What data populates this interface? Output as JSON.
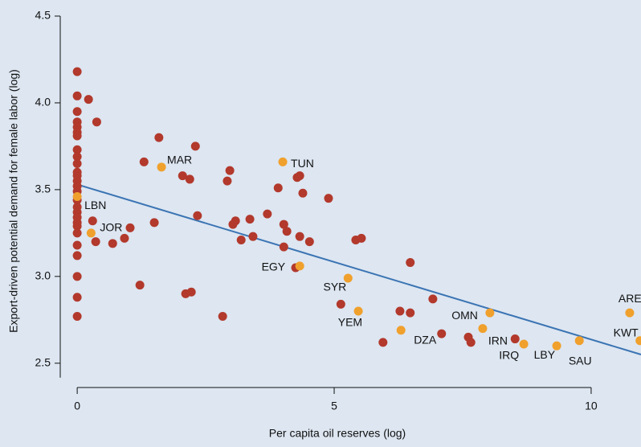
{
  "chart_data": {
    "type": "scatter",
    "x_label": "Per capita oil reserves (log)",
    "y_label": "Export-driven potential demand for female labor (log)",
    "xlim": [
      -0.33,
      10.97
    ],
    "xticks": [
      0,
      5,
      10
    ],
    "ylim": [
      2.36,
      4.5
    ],
    "yticks": [
      {
        "value": 2.5,
        "label": "2.5"
      },
      {
        "value": 3.0,
        "label": "3.0"
      },
      {
        "value": 3.5,
        "label": "3.5"
      },
      {
        "value": 4.0,
        "label": "4.0"
      },
      {
        "value": 4.5,
        "label": "4.5"
      }
    ],
    "trend_line": {
      "x": [
        0,
        10.97
      ],
      "y": [
        3.53,
        2.55
      ],
      "color": "#3b74b3"
    },
    "series": [
      {
        "color": "#b2392c",
        "x": [
          0,
          0,
          0,
          0,
          0,
          0,
          0,
          0,
          0,
          0,
          0,
          0,
          0,
          0,
          0,
          0,
          0,
          0,
          0,
          0,
          0,
          0,
          0,
          0,
          0,
          0,
          0,
          0.22,
          0.38,
          0.3,
          0.36,
          0.69,
          0.92,
          1.03,
          1.22,
          1.3,
          1.5,
          1.59,
          2.05,
          2.19,
          2.3,
          2.34,
          2.11,
          2.22,
          2.83,
          2.92,
          2.97,
          3.03,
          3.08,
          3.19,
          3.36,
          3.42,
          3.7,
          3.91,
          4.02,
          4.08,
          4.02,
          4.25,
          4.28,
          4.33,
          4.33,
          4.39,
          4.52,
          4.89,
          5.42,
          5.53,
          5.13,
          5.95,
          6.28,
          6.48,
          6.48,
          6.92,
          7.09,
          7.61,
          7.66,
          8.52
        ],
        "y": [
          4.18,
          4.04,
          3.95,
          3.89,
          3.86,
          3.83,
          3.81,
          3.73,
          3.69,
          3.65,
          3.6,
          3.58,
          3.55,
          3.52,
          3.49,
          3.44,
          3.4,
          3.37,
          3.34,
          3.31,
          3.29,
          3.25,
          3.18,
          3.12,
          3.0,
          2.88,
          2.77,
          4.02,
          3.89,
          3.32,
          3.2,
          3.19,
          3.22,
          3.28,
          2.95,
          3.66,
          3.31,
          3.8,
          3.58,
          3.56,
          3.75,
          3.35,
          2.9,
          2.91,
          2.77,
          3.55,
          3.61,
          3.3,
          3.32,
          3.21,
          3.33,
          3.23,
          3.36,
          3.51,
          3.3,
          3.26,
          3.17,
          3.05,
          3.57,
          3.58,
          3.23,
          3.48,
          3.2,
          3.45,
          3.21,
          3.22,
          2.84,
          2.62,
          2.8,
          2.79,
          3.08,
          2.87,
          2.67,
          2.65,
          2.62,
          2.64
        ]
      },
      {
        "color": "#f0a02c",
        "x": [
          0,
          0.27,
          1.64,
          4.0,
          4.33,
          5.27,
          5.47,
          6.3,
          8.03,
          7.89,
          8.69,
          9.33,
          9.77,
          10.75,
          10.95
        ],
        "y": [
          3.46,
          3.25,
          3.63,
          3.66,
          3.06,
          2.99,
          2.8,
          2.69,
          2.79,
          2.7,
          2.61,
          2.6,
          2.63,
          2.79,
          2.63
        ],
        "labels": [
          "LBN",
          "JOR",
          "MAR",
          "TUN",
          "EGY",
          "SYR",
          "YEM",
          "DZA",
          "OMN",
          "IRN",
          "IRQ",
          "LBY",
          "SAU",
          "ARE",
          "KWT"
        ]
      }
    ]
  }
}
